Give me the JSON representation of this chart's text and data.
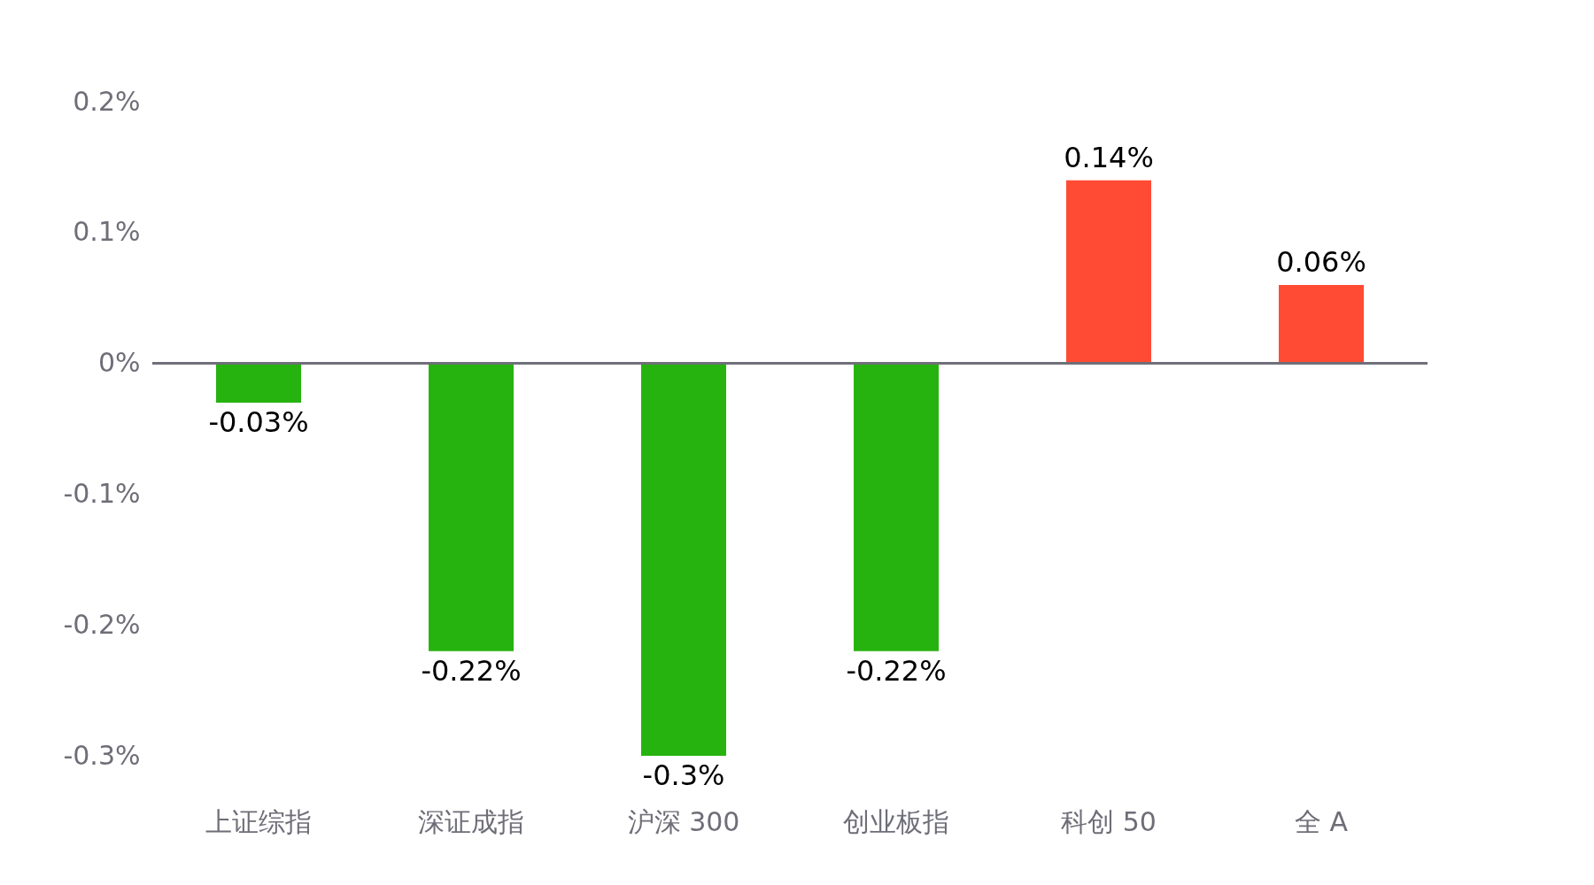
{
  "chart_data": {
    "type": "bar",
    "categories": [
      "上证综指",
      "深证成指",
      "沪深 300",
      "创业板指",
      "科创 50",
      "全 A"
    ],
    "values": [
      -0.03,
      -0.22,
      -0.3,
      -0.22,
      0.14,
      0.06
    ],
    "colors": [
      "#27b30f",
      "#27b30f",
      "#27b30f",
      "#27b30f",
      "#ff4b33",
      "#ff4b33"
    ],
    "value_labels": [
      "-0.03%",
      "-0.22%",
      "-0.3%",
      "-0.22%",
      "0.14%",
      "0.06%"
    ],
    "ylim": [
      -0.3,
      0.2
    ],
    "yticks": [
      {
        "value": -0.3,
        "label": "-0.3%"
      },
      {
        "value": -0.2,
        "label": "-0.2%"
      },
      {
        "value": -0.1,
        "label": "-0.1%"
      },
      {
        "value": 0,
        "label": "0%"
      },
      {
        "value": 0.1,
        "label": "0.1%"
      },
      {
        "value": 0.2,
        "label": "0.2%"
      }
    ],
    "ref_lines": [
      {
        "axis": "y",
        "value": 0,
        "color": "#6e6e78"
      }
    ],
    "grid": false
  }
}
